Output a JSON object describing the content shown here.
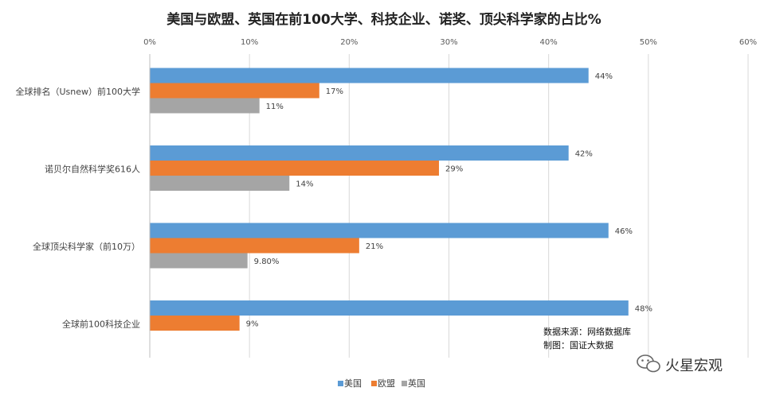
{
  "chart_data": {
    "type": "bar",
    "orientation": "horizontal",
    "title": "美国与欧盟、英国在前100大学、科技企业、诺奖、顶尖科学家的占比%",
    "categories": [
      "全球排名（Usnew）前100大学",
      "诺贝尔自然科学奖616人",
      "全球顶尖科学家（前10万）",
      "全球前100科技企业"
    ],
    "series": [
      {
        "name": "美国",
        "color": "#5B9BD5",
        "values": [
          44,
          42,
          46,
          48
        ],
        "labels": [
          "44%",
          "42%",
          "46%",
          "48%"
        ]
      },
      {
        "name": "欧盟",
        "color": "#ED7D31",
        "values": [
          17,
          29,
          21,
          9
        ],
        "labels": [
          "17%",
          "29%",
          "21%",
          "9%"
        ]
      },
      {
        "name": "英国",
        "color": "#A5A5A5",
        "values": [
          11,
          14,
          9.8,
          null
        ],
        "labels": [
          "11%",
          "14%",
          "9.80%",
          ""
        ]
      }
    ],
    "xlim": [
      0,
      60
    ],
    "ticks": [
      0,
      10,
      20,
      30,
      40,
      50,
      60
    ],
    "tick_labels": [
      "0%",
      "10%",
      "20%",
      "30%",
      "40%",
      "50%",
      "60%"
    ],
    "xlabel": "",
    "ylabel": "",
    "grid": true,
    "legend_position": "bottom"
  },
  "notes": {
    "source": "数据来源：网络数据库",
    "maker": "制图：国证大数据"
  },
  "watermark": {
    "text": "火星宏观"
  }
}
